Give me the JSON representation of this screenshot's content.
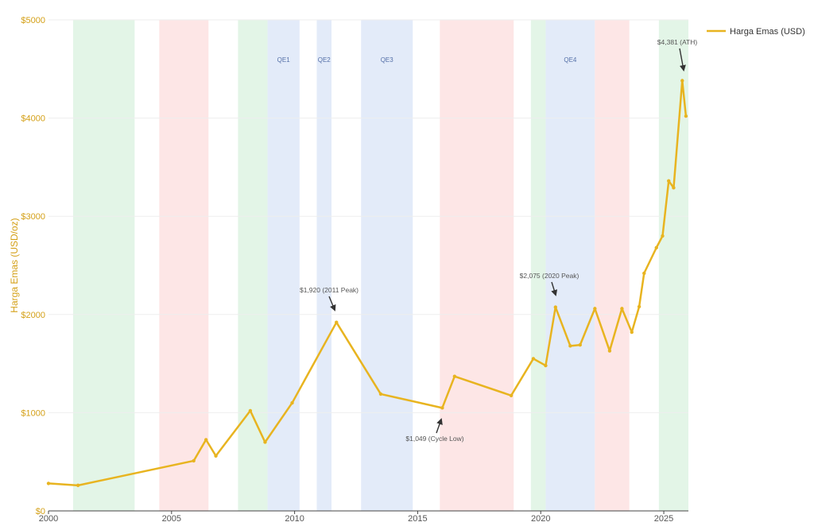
{
  "chart_data": {
    "type": "line",
    "xlabel": "",
    "ylabel": "Harga Emas (USD/oz)",
    "xlim": [
      2000,
      2026
    ],
    "ylim": [
      0,
      5000
    ],
    "x_ticks": [
      2000,
      2005,
      2010,
      2015,
      2020,
      2025
    ],
    "x_tick_labels": [
      "2000",
      "2005",
      "2010",
      "2015",
      "2020",
      "2025"
    ],
    "y_ticks": [
      0,
      1000,
      2000,
      3000,
      4000,
      5000
    ],
    "y_tick_labels": [
      "$0",
      "$1000",
      "$2000",
      "$3000",
      "$4000",
      "$5000"
    ],
    "grid": true,
    "legend_position": "top-right",
    "series": [
      {
        "name": "Harga Emas (USD)",
        "color": "#e8b420",
        "x": [
          2000.0,
          2001.2,
          2005.9,
          2006.4,
          2006.8,
          2008.2,
          2008.8,
          2009.9,
          2011.7,
          2013.5,
          2016.0,
          2016.5,
          2018.8,
          2019.7,
          2020.2,
          2020.6,
          2021.2,
          2021.6,
          2022.2,
          2022.8,
          2023.3,
          2023.7,
          2024.0,
          2024.2,
          2024.7,
          2024.95,
          2025.2,
          2025.4,
          2025.75,
          2025.9
        ],
        "y": [
          280,
          260,
          510,
          725,
          560,
          1020,
          700,
          1100,
          1920,
          1190,
          1049,
          1370,
          1175,
          1550,
          1480,
          2075,
          1680,
          1690,
          2060,
          1630,
          2060,
          1820,
          2080,
          2420,
          2680,
          2800,
          3360,
          3290,
          4381,
          4020
        ]
      }
    ],
    "shaded_periods": [
      {
        "start": 2001.0,
        "end": 2003.5,
        "color": "#e3f5e7"
      },
      {
        "start": 2004.5,
        "end": 2006.5,
        "color": "#fde6e6"
      },
      {
        "start": 2007.7,
        "end": 2008.9,
        "color": "#e3f5e7"
      },
      {
        "start": 2008.9,
        "end": 2010.2,
        "color": "#e3ebf9",
        "label": "QE1"
      },
      {
        "start": 2010.9,
        "end": 2011.5,
        "color": "#e3ebf9",
        "label": "QE2"
      },
      {
        "start": 2012.7,
        "end": 2014.8,
        "color": "#e3ebf9",
        "label": "QE3"
      },
      {
        "start": 2015.9,
        "end": 2018.9,
        "color": "#fde6e6"
      },
      {
        "start": 2019.6,
        "end": 2020.2,
        "color": "#e3f5e7"
      },
      {
        "start": 2020.2,
        "end": 2022.2,
        "color": "#e3ebf9",
        "label": "QE4"
      },
      {
        "start": 2022.2,
        "end": 2023.6,
        "color": "#fde6e6"
      },
      {
        "start": 2024.8,
        "end": 2026.0,
        "color": "#e3f5e7"
      }
    ],
    "annotations": [
      {
        "text": "$1,920 (2011 Peak)",
        "x": 2011.7,
        "y": 1920
      },
      {
        "text": "$1,049 (Cycle Low)",
        "x": 2016.0,
        "y": 1049
      },
      {
        "text": "$2,075 (2020 Peak)",
        "x": 2020.6,
        "y": 2075
      },
      {
        "text": "$4,381 (ATH)",
        "x": 2025.75,
        "y": 4381
      }
    ],
    "colors": {
      "line": "#e8b420",
      "axis_labels": "#d4a017",
      "band_label": "#5570a8",
      "annotation_text": "#555555",
      "arrow": "#333333",
      "grid": "#eeeeee"
    }
  }
}
